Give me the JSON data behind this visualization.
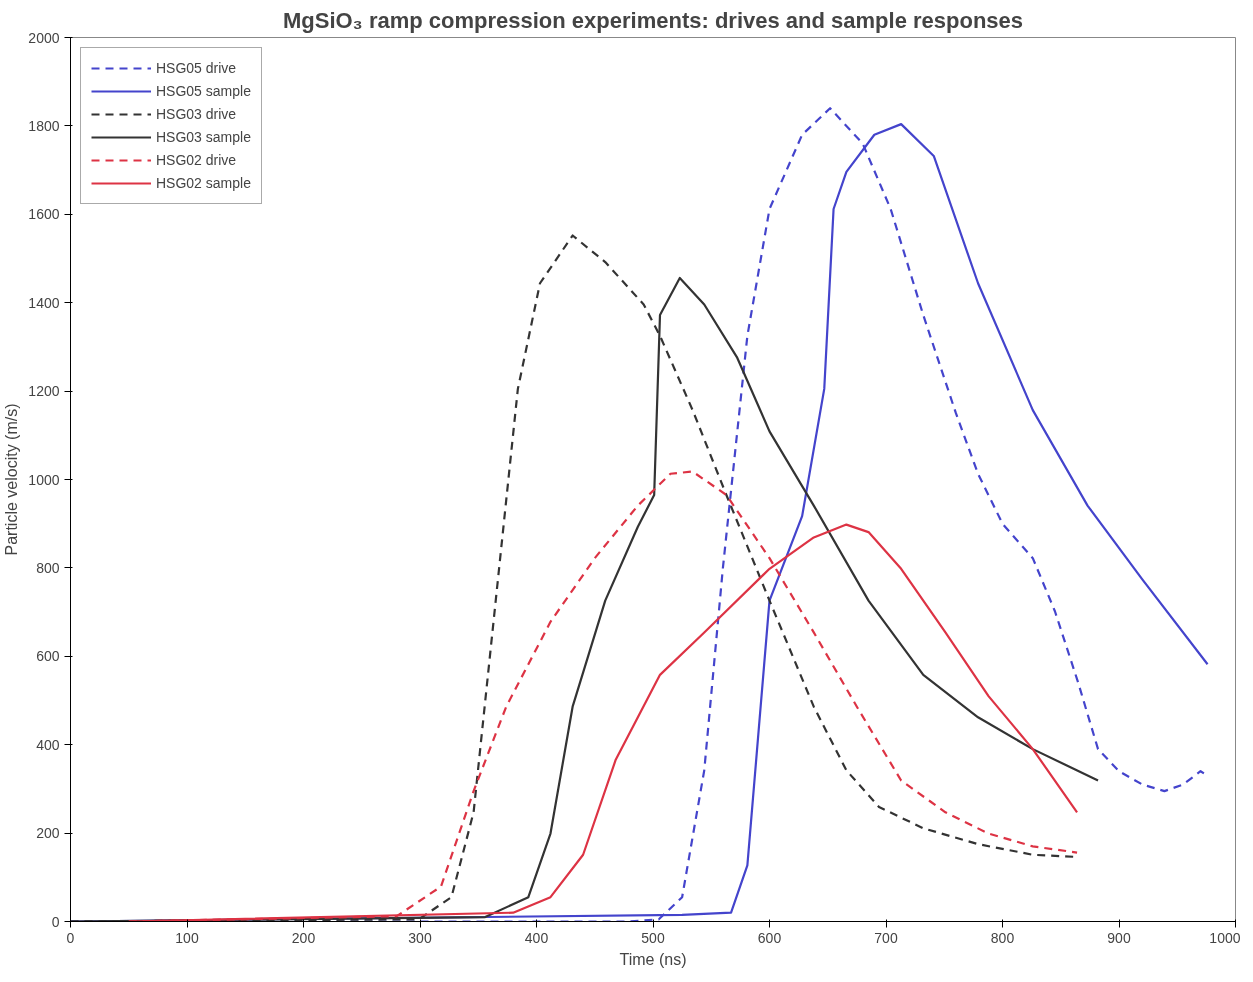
{
  "chart_data": {
    "type": "line",
    "title": "MgSiO₃ ramp compression experiments: drives and sample responses",
    "xlabel": "Time (ns)",
    "ylabel": "Particle velocity (m/s)",
    "xlim": [
      0,
      1000
    ],
    "ylim": [
      0,
      2000
    ],
    "xticks": [
      0,
      100,
      200,
      300,
      400,
      500,
      600,
      700,
      800,
      900,
      1000
    ],
    "yticks": [
      0,
      200,
      400,
      600,
      800,
      1000,
      1200,
      1400,
      1600,
      1800,
      2000
    ],
    "grid": false,
    "legend": "top left",
    "marker": "none",
    "series": [
      {
        "name": "HSG05 drive",
        "color": "#4444cc",
        "line_style": "dashed",
        "x": [
          0,
          480,
          505,
          525,
          544,
          560,
          581,
          600,
          628,
          652,
          680,
          704,
          732,
          760,
          779,
          800,
          826,
          845,
          865,
          882,
          900,
          920,
          939,
          955,
          970,
          976
        ],
        "values": [
          0,
          0,
          5,
          55,
          342,
          800,
          1325,
          1612,
          1780,
          1840,
          1760,
          1612,
          1372,
          1150,
          1013,
          900,
          822,
          702,
          540,
          390,
          340,
          310,
          295,
          310,
          340,
          330
        ]
      },
      {
        "name": "HSG05 sample",
        "color": "#4444cc",
        "line_style": "solid",
        "x": [
          0,
          525,
          567,
          581,
          600,
          628,
          647,
          655,
          666,
          690,
          713,
          741,
          779,
          826,
          873,
          920,
          976
        ],
        "values": [
          0,
          15,
          20,
          127,
          726,
          917,
          1205,
          1612,
          1696,
          1780,
          1804,
          1732,
          1444,
          1157,
          941,
          774,
          582
        ]
      },
      {
        "name": "HSG03 drive",
        "color": "#333333",
        "line_style": "dashed",
        "x": [
          0,
          299,
          327,
          346,
          365,
          384,
          403,
          431,
          459,
          492,
          506,
          534,
          563,
          600,
          638,
          666,
          694,
          732,
          779,
          826,
          864
        ],
        "values": [
          0,
          5,
          55,
          247,
          726,
          1205,
          1444,
          1552,
          1492,
          1396,
          1325,
          1157,
          965,
          726,
          486,
          342,
          259,
          211,
          175,
          151,
          146
        ]
      },
      {
        "name": "HSG03 sample",
        "color": "#333333",
        "line_style": "solid",
        "x": [
          0,
          356,
          393,
          412,
          431,
          459,
          487,
          501,
          506,
          523,
          544,
          572,
          600,
          638,
          685,
          732,
          779,
          826,
          882
        ],
        "values": [
          0,
          10,
          55,
          199,
          486,
          726,
          893,
          965,
          1372,
          1456,
          1396,
          1277,
          1109,
          941,
          726,
          558,
          462,
          390,
          319
        ]
      },
      {
        "name": "HSG02 drive",
        "color": "#dd3344",
        "line_style": "dashed",
        "x": [
          50,
          280,
          318,
          346,
          374,
          412,
          450,
          487,
          515,
          534,
          563,
          600,
          638,
          675,
          713,
          751,
          788,
          826,
          864
        ],
        "values": [
          0,
          12,
          79,
          295,
          486,
          678,
          822,
          941,
          1013,
          1018,
          965,
          822,
          654,
          486,
          319,
          247,
          199,
          170,
          156
        ]
      },
      {
        "name": "HSG02 sample",
        "color": "#dd3344",
        "line_style": "solid",
        "x": [
          50,
          380,
          412,
          440,
          468,
          506,
          544,
          600,
          638,
          666,
          685,
          713,
          751,
          788,
          826,
          864
        ],
        "values": [
          0,
          20,
          55,
          151,
          366,
          558,
          654,
          798,
          869,
          898,
          881,
          798,
          654,
          510,
          390,
          247
        ]
      }
    ]
  }
}
